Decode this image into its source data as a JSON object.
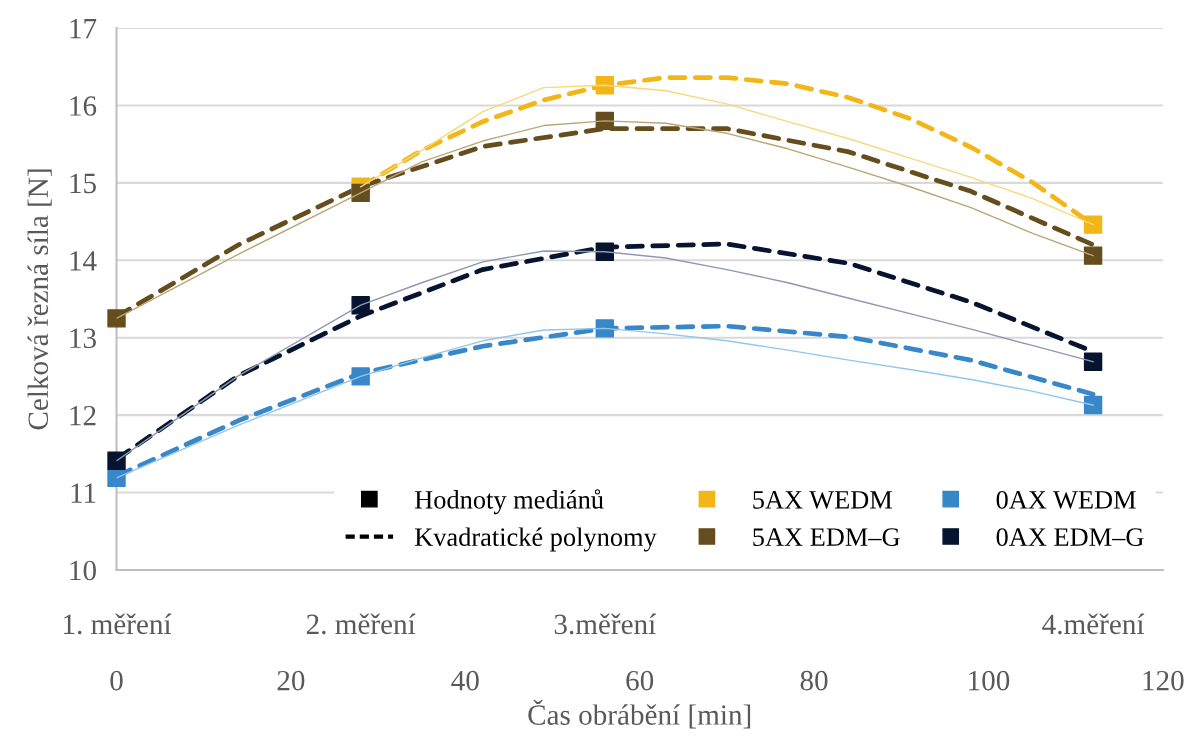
{
  "chart_data": {
    "type": "line",
    "xlabel": "Čas obrábění [min]",
    "ylabel": "Celková řezná síla [N]",
    "x": [
      0,
      28,
      56,
      112
    ],
    "xlim": [
      0,
      120
    ],
    "xticks": [
      0,
      20,
      40,
      60,
      80,
      100,
      120
    ],
    "ylim": [
      10,
      17
    ],
    "yticks": [
      10,
      11,
      12,
      13,
      14,
      15,
      16,
      17
    ],
    "annotations": [
      "1. měření",
      "2. měření",
      "3.měření",
      "4.měření"
    ],
    "grid": "y",
    "legend": "bottom right",
    "series": [
      {
        "name": "Hodnoty mediánů",
        "type": "scatter",
        "marker": "square",
        "color": "#000000",
        "values": [
          null,
          null,
          null,
          null
        ]
      },
      {
        "name": "Kvadratické polynomy",
        "line_style": "dashed",
        "color": "#000000",
        "values": [
          null,
          null,
          null,
          null
        ]
      },
      {
        "line_style": "solid",
        "color": "#f8d87a",
        "x": [
          28,
          35,
          42,
          49,
          56,
          63,
          70,
          77,
          84,
          91,
          98,
          105,
          112
        ],
        "values": [
          14.95,
          15.42,
          15.92,
          16.23,
          16.26,
          16.19,
          16.02,
          15.79,
          15.57,
          15.32,
          15.07,
          14.8,
          14.46
        ]
      },
      {
        "line_style": "solid",
        "color": "#b8a677",
        "x": [
          0,
          14,
          28,
          35,
          42,
          49,
          56,
          63,
          70,
          77,
          84,
          91,
          98,
          105,
          112
        ],
        "values": [
          13.25,
          14.08,
          14.87,
          15.27,
          15.54,
          15.74,
          15.8,
          15.77,
          15.64,
          15.44,
          15.2,
          14.95,
          14.68,
          14.35,
          14.06
        ]
      },
      {
        "line_style": "solid",
        "color": "#8d98b0",
        "x": [
          0,
          14,
          28,
          35,
          42,
          49,
          56,
          63,
          70,
          77,
          84,
          91,
          98,
          105,
          112
        ],
        "values": [
          11.41,
          12.51,
          13.42,
          13.71,
          13.98,
          14.12,
          14.11,
          14.03,
          13.88,
          13.71,
          13.51,
          13.31,
          13.11,
          12.9,
          12.69
        ]
      },
      {
        "line_style": "solid",
        "color": "#92c6ee",
        "x": [
          0,
          14,
          28,
          35,
          42,
          49,
          56,
          63,
          70,
          77,
          84,
          91,
          98,
          105,
          112
        ],
        "values": [
          11.19,
          11.87,
          12.5,
          12.74,
          12.96,
          13.1,
          13.12,
          13.05,
          12.96,
          12.84,
          12.71,
          12.59,
          12.46,
          12.31,
          12.13
        ]
      },
      {
        "line_style": "dashed",
        "color": "#f2b619",
        "x": [
          28,
          35,
          42,
          49,
          56,
          63,
          70,
          77,
          84,
          91,
          98,
          105,
          112
        ],
        "values": [
          14.95,
          15.42,
          15.79,
          16.07,
          16.26,
          16.36,
          16.36,
          16.28,
          16.1,
          15.83,
          15.46,
          15.01,
          14.46
        ]
      },
      {
        "line_style": "dashed",
        "color": "#654d1e",
        "x": [
          0,
          14,
          28,
          42,
          56,
          70,
          84,
          98,
          112
        ],
        "values": [
          13.27,
          14.2,
          14.95,
          15.47,
          15.7,
          15.7,
          15.4,
          14.89,
          14.2
        ]
      },
      {
        "line_style": "dashed",
        "color": "#06142f",
        "x": [
          0,
          14,
          28,
          42,
          56,
          70,
          84,
          98,
          112
        ],
        "values": [
          11.43,
          12.51,
          13.28,
          13.88,
          14.17,
          14.21,
          13.96,
          13.46,
          12.82
        ]
      },
      {
        "line_style": "dashed",
        "color": "#3787c9",
        "x": [
          0,
          14,
          28,
          42,
          56,
          70,
          84,
          98,
          112
        ],
        "values": [
          11.21,
          11.93,
          12.54,
          12.89,
          13.12,
          13.15,
          13.01,
          12.71,
          12.27
        ]
      },
      {
        "name": "5AX WEDM",
        "type": "scatter",
        "marker": "square",
        "color": "#f2b619",
        "values": [
          null,
          14.95,
          16.26,
          14.46
        ]
      },
      {
        "name": "5AX EDM–G",
        "type": "scatter",
        "marker": "square",
        "color": "#654d1e",
        "values": [
          13.25,
          14.87,
          15.8,
          14.06
        ]
      },
      {
        "name": "0AX WEDM",
        "type": "scatter",
        "marker": "square",
        "color": "#3787c9",
        "values": [
          11.19,
          12.5,
          13.12,
          12.13
        ]
      },
      {
        "name": "0AX EDM–G",
        "type": "scatter",
        "marker": "square",
        "color": "#06142f",
        "values": [
          11.41,
          13.42,
          14.11,
          12.69
        ]
      }
    ]
  }
}
